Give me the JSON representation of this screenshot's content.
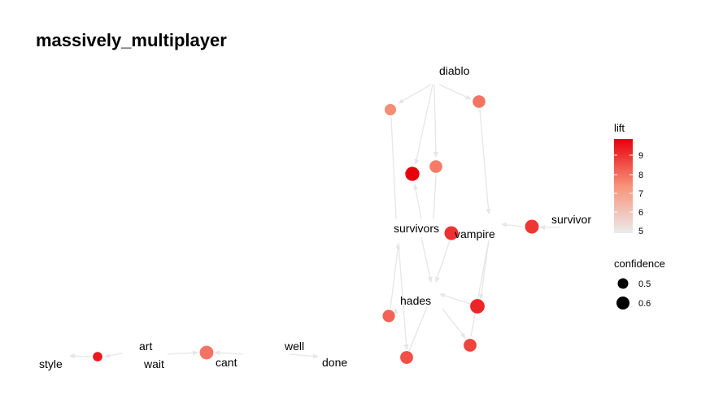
{
  "title": "massively_multiplayer",
  "colors": {
    "low": "#ebebeb",
    "high": "#e8000b",
    "edge": "#e6e6e6"
  },
  "legend": {
    "lift": {
      "title": "lift",
      "ticks": [
        "9",
        "8",
        "7",
        "6",
        "5"
      ],
      "min": 5,
      "max": 9.8
    },
    "confidence": {
      "title": "confidence",
      "items": [
        {
          "label": "0.5",
          "value": 0.5
        },
        {
          "label": "0.6",
          "value": 0.6
        }
      ]
    }
  },
  "nodes": {
    "labels": {
      "diablo": "diablo",
      "survivors": "survivors",
      "vampire": "vampire",
      "survivor": "survivor",
      "hades": "hades",
      "art": "art",
      "wait": "wait",
      "cant": "cant",
      "style": "style",
      "well": "well",
      "done": "done"
    },
    "rules": [
      {
        "id": "r1",
        "lift": 7.5,
        "confidence": 0.42
      },
      {
        "id": "r2",
        "lift": 7.9,
        "confidence": 0.5
      },
      {
        "id": "r3",
        "lift": 9.8,
        "confidence": 0.6
      },
      {
        "id": "r4",
        "lift": 7.8,
        "confidence": 0.5
      },
      {
        "id": "r5",
        "lift": 9.0,
        "confidence": 0.58
      },
      {
        "id": "r6",
        "lift": 8.9,
        "confidence": 0.58
      },
      {
        "id": "r7",
        "lift": 8.2,
        "confidence": 0.48
      },
      {
        "id": "r8",
        "lift": 8.5,
        "confidence": 0.52
      },
      {
        "id": "r9",
        "lift": 9.2,
        "confidence": 0.62
      },
      {
        "id": "r10",
        "lift": 8.7,
        "confidence": 0.52
      },
      {
        "id": "r11",
        "lift": 9.4,
        "confidence": 0.3
      },
      {
        "id": "r12",
        "lift": 7.9,
        "confidence": 0.57
      }
    ]
  }
}
